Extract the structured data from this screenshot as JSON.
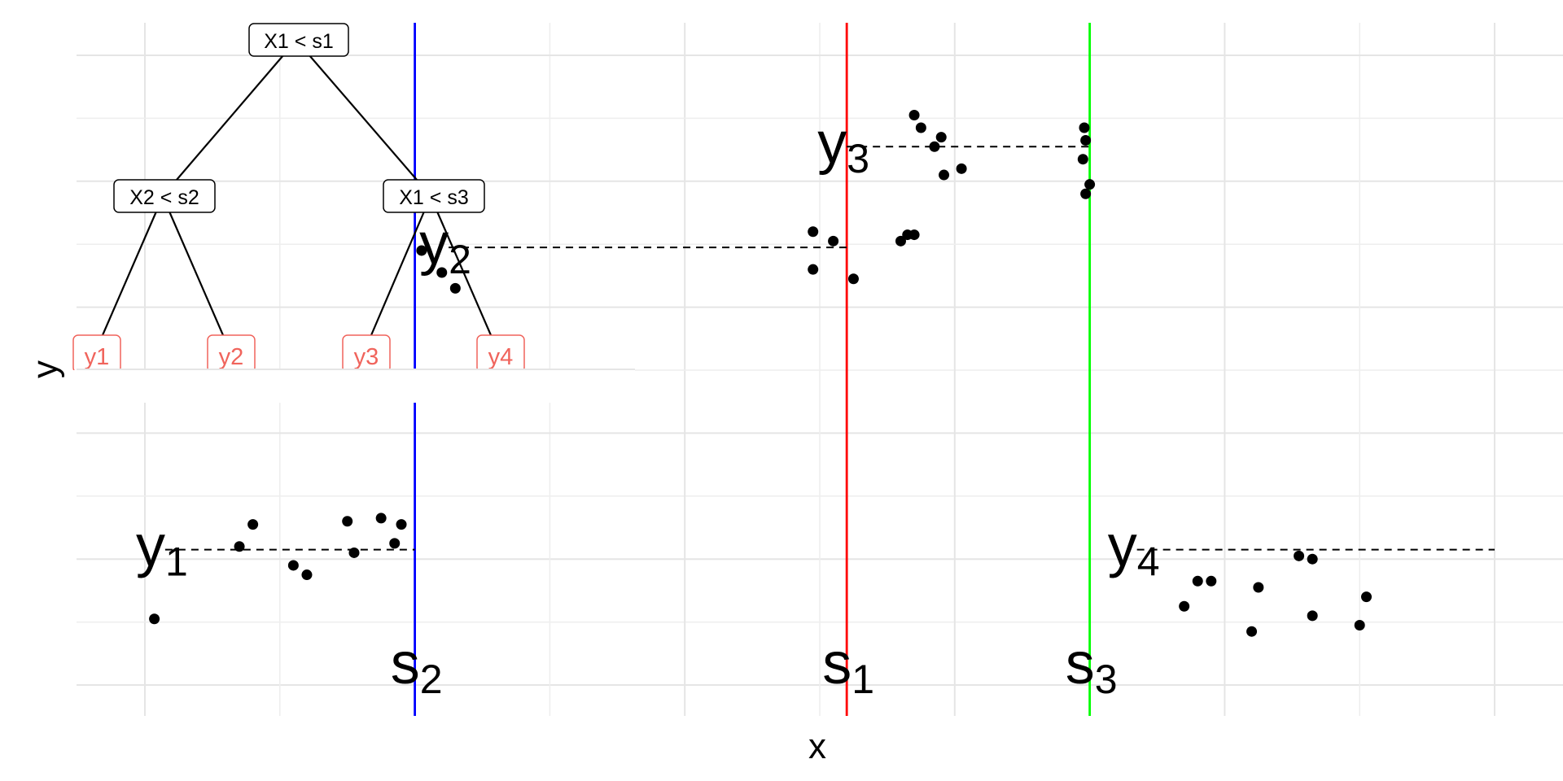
{
  "chart_data": {
    "type": "scatter",
    "title": "",
    "xlabel": "x",
    "ylabel": "y",
    "xlim": [
      0,
      10
    ],
    "ylim": [
      0,
      10
    ],
    "grid": true,
    "split_lines": [
      {
        "name": "s1",
        "base": "s",
        "sub": "1",
        "x": 5.2,
        "color": "#ff0000"
      },
      {
        "name": "s2",
        "base": "s",
        "sub": "2",
        "x": 2.0,
        "color": "#0000ff"
      },
      {
        "name": "s3",
        "base": "s",
        "sub": "3",
        "x": 7.0,
        "color": "#00ff00"
      }
    ],
    "regions": [
      {
        "name": "y1",
        "base": "y",
        "sub": "1",
        "mean": 2.15,
        "x_start": 0.15,
        "x_end": 2.0,
        "points": [
          [
            0.07,
            1.05
          ],
          [
            0.7,
            2.2
          ],
          [
            0.8,
            2.55
          ],
          [
            1.1,
            1.9
          ],
          [
            1.2,
            1.75
          ],
          [
            1.5,
            2.6
          ],
          [
            1.55,
            2.1
          ],
          [
            1.75,
            2.65
          ],
          [
            1.85,
            2.25
          ],
          [
            1.9,
            2.55
          ]
        ]
      },
      {
        "name": "y2",
        "base": "y",
        "sub": "2",
        "mean": 6.95,
        "x_start": 2.25,
        "x_end": 5.2,
        "points": [
          [
            2.05,
            6.9
          ],
          [
            2.2,
            6.55
          ],
          [
            2.3,
            6.3
          ],
          [
            4.95,
            6.6
          ],
          [
            4.95,
            7.2
          ],
          [
            5.1,
            7.05
          ],
          [
            5.25,
            6.45
          ],
          [
            5.6,
            7.05
          ],
          [
            5.65,
            7.15
          ],
          [
            5.7,
            7.15
          ]
        ]
      },
      {
        "name": "y3",
        "base": "y",
        "sub": "3",
        "mean": 8.55,
        "x_start": 5.2,
        "x_end": 7.0,
        "points": [
          [
            5.7,
            9.05
          ],
          [
            5.75,
            8.85
          ],
          [
            5.85,
            8.55
          ],
          [
            5.9,
            8.7
          ],
          [
            5.92,
            8.1
          ],
          [
            6.05,
            8.2
          ],
          [
            6.95,
            8.35
          ],
          [
            6.96,
            8.85
          ],
          [
            6.97,
            8.65
          ],
          [
            6.97,
            7.8
          ],
          [
            7.0,
            7.95
          ]
        ]
      },
      {
        "name": "y4",
        "base": "y",
        "sub": "4",
        "mean": 2.15,
        "x_start": 7.35,
        "x_end": 10.0,
        "points": [
          [
            7.7,
            1.25
          ],
          [
            7.8,
            1.65
          ],
          [
            7.9,
            1.65
          ],
          [
            8.2,
            0.85
          ],
          [
            8.25,
            1.55
          ],
          [
            8.55,
            2.05
          ],
          [
            8.65,
            2.0
          ],
          [
            8.65,
            1.1
          ],
          [
            9.0,
            0.95
          ],
          [
            9.05,
            1.4
          ]
        ]
      }
    ],
    "tree": {
      "root": "X1 < s1",
      "left_child": "X2 < s2",
      "right_child": "X1 < s3",
      "leaves": [
        "y1",
        "y2",
        "y3",
        "y4"
      ]
    }
  }
}
